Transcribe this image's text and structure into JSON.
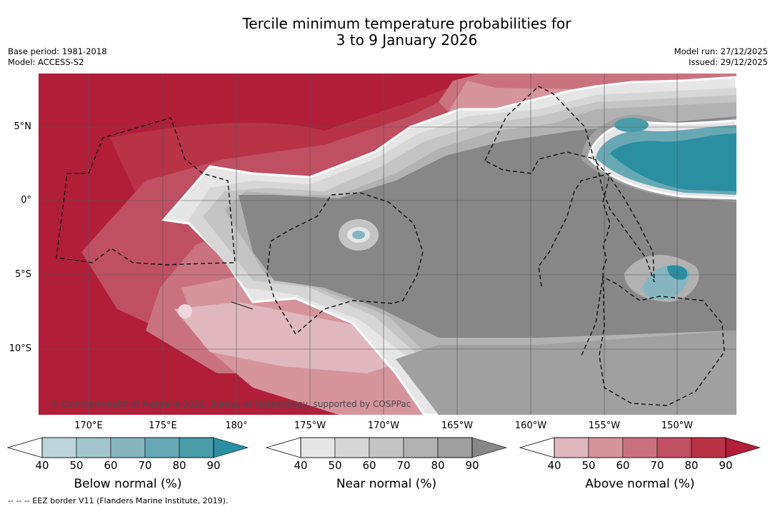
{
  "title": {
    "line1": "Tercile minimum temperature probabilities for",
    "line2": "3 to 9 January 2026"
  },
  "meta": {
    "base_period": "Base period: 1981-2018",
    "model": "Model: ACCESS-S2",
    "model_run": "Model run: 27/12/2025",
    "issued": "Issued: 29/12/2025"
  },
  "axes": {
    "lat_labels": [
      "5°N",
      "0°",
      "5°S",
      "10°S"
    ],
    "lon_labels": [
      "170°E",
      "175°E",
      "180°",
      "175°W",
      "170°W",
      "165°W",
      "160°W",
      "155°W",
      "150°W"
    ]
  },
  "copyright": "© Commonwealth of Australia 2025, Bureau of Meteorology, supported by COSPPac",
  "colorbars": [
    {
      "title": "Below normal (%)",
      "ticks": [
        "40",
        "50",
        "60",
        "70",
        "80",
        "90"
      ],
      "colors": [
        "#bcd4da",
        "#a3c6cd",
        "#86b5c0",
        "#68a8b5",
        "#4a9caa",
        "#2b8fa3"
      ]
    },
    {
      "title": "Near normal (%)",
      "ticks": [
        "40",
        "50",
        "60",
        "70",
        "80",
        "90"
      ],
      "colors": [
        "#e6e6e6",
        "#d6d6d6",
        "#c4c4c4",
        "#b2b2b2",
        "#a0a0a0",
        "#878787"
      ]
    },
    {
      "title": "Above normal (%)",
      "ticks": [
        "40",
        "50",
        "60",
        "70",
        "80",
        "90"
      ],
      "colors": [
        "#e0b7be",
        "#d6949d",
        "#ca7380",
        "#c04f63",
        "#b83348",
        "#b01e3a"
      ]
    }
  ],
  "footer": "--  --  -- EEZ border V11 (Flanders Marine Institute, 2019)."
}
